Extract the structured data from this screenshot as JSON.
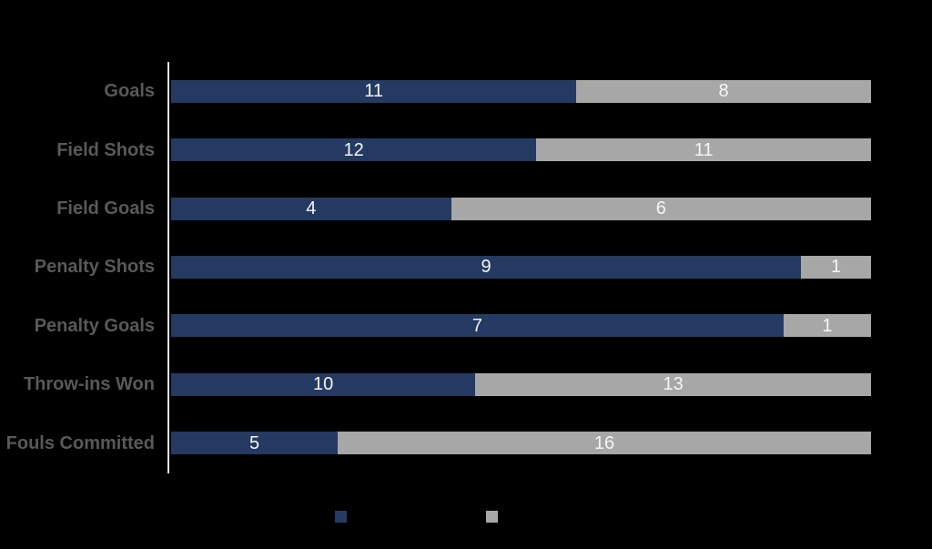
{
  "page": {
    "background_color": "#000000",
    "axis_line_color": "#E4E3E3"
  },
  "chart_data": {
    "type": "bar",
    "subtype": "horizontal-100-percent-stacked",
    "title": "",
    "xlabel": "",
    "ylabel": "",
    "grid": "off",
    "categories": [
      "Goals",
      "Field Shots",
      "Field Goals",
      "Penalty Shots",
      "Penalty Goals",
      "Throw-ins Won",
      "Fouls Committed"
    ],
    "series": [
      {
        "name": "",
        "swatch": "navy",
        "color": "#243A62",
        "values": [
          11,
          12,
          4,
          9,
          7,
          10,
          5
        ]
      },
      {
        "name": "",
        "swatch": "gray",
        "color": "#A7A7A7",
        "values": [
          8,
          11,
          6,
          1,
          1,
          13,
          16
        ]
      }
    ],
    "value_labels_position": "inside-center",
    "value_label_color": "#F5F5F5",
    "category_label_color": "#595959",
    "legend_position": "bottom",
    "legend_labels_visible": false
  }
}
